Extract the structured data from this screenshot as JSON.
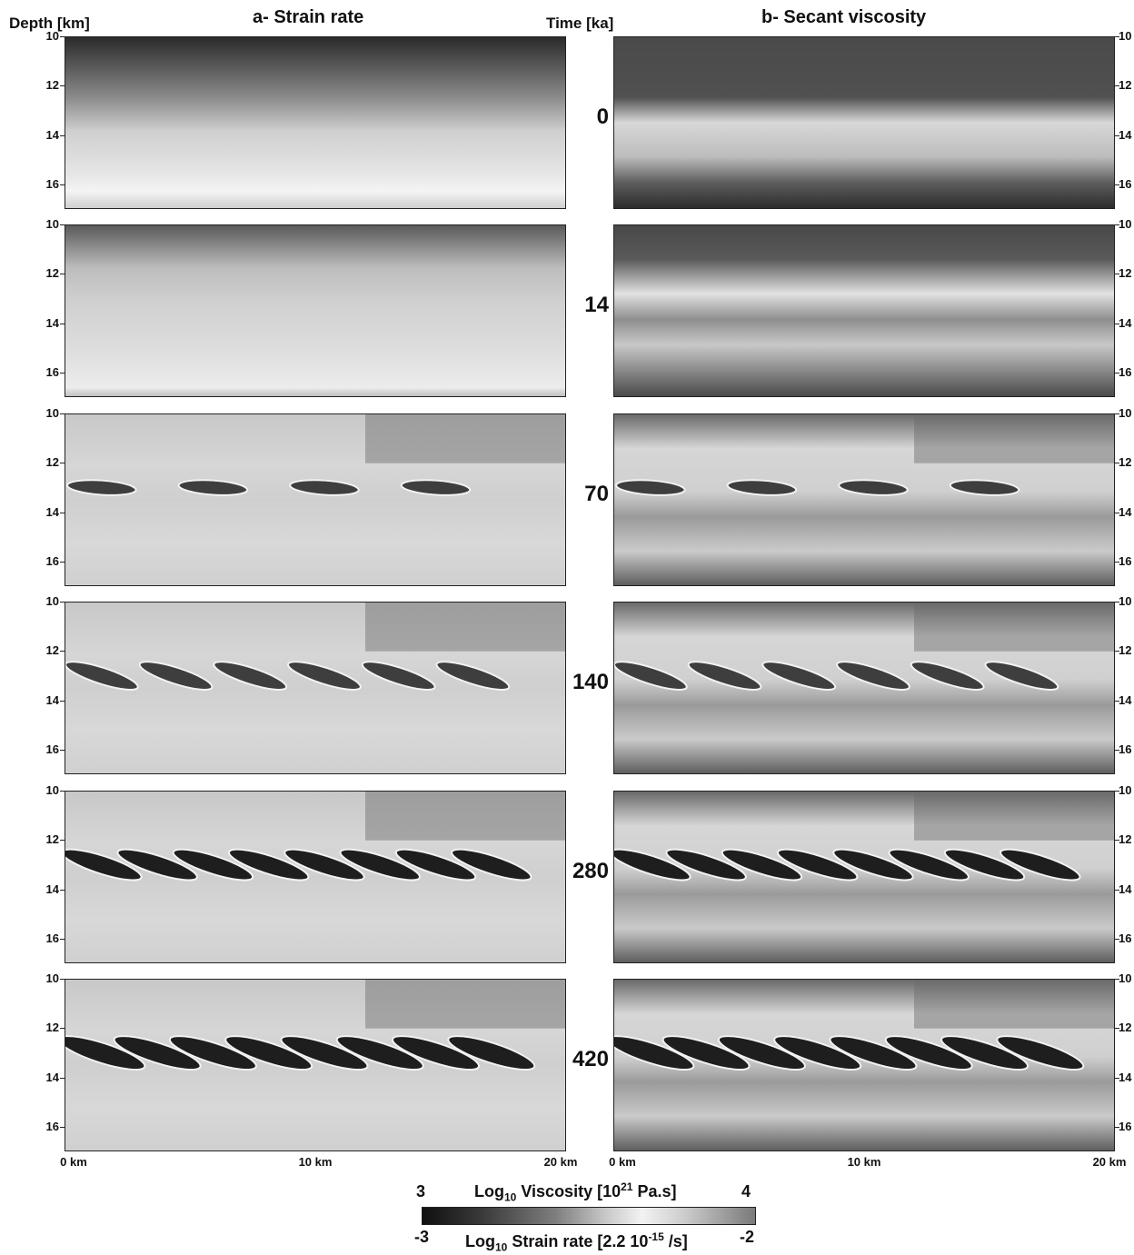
{
  "headers": {
    "depth": "Depth [km]",
    "strain": "a- Strain rate",
    "time": "Time [ka]",
    "viscosity": "b- Secant viscosity"
  },
  "chart_data": {
    "type": "heatmap",
    "panels_per_row": [
      "a- Strain rate",
      "b- Secant viscosity"
    ],
    "rows": [
      {
        "time": "0"
      },
      {
        "time": "14"
      },
      {
        "time": "70"
      },
      {
        "time": "140"
      },
      {
        "time": "280"
      },
      {
        "time": "420"
      }
    ],
    "y_ticks": [
      "10",
      "12",
      "14",
      "16"
    ],
    "y_range_km": [
      10,
      17
    ],
    "x_ticks": [
      "0 km",
      "10 km",
      "20 km"
    ],
    "x_range_km": [
      0,
      20
    ],
    "xlabel": "",
    "colorbar": {
      "viscosity_label_prefix": "Log",
      "viscosity_label_sub": "10",
      "viscosity_label_mid": " Viscosity [10",
      "viscosity_label_sup": "21",
      "viscosity_label_end": " Pa.s]",
      "viscosity_min": "3",
      "viscosity_max": "4",
      "strain_label_prefix": "Log",
      "strain_label_sub": "10",
      "strain_label_mid": " Strain rate [2.2 10",
      "strain_label_sup": "-15",
      "strain_label_end": " /s]",
      "strain_min": "-3",
      "strain_max": "-2"
    }
  }
}
